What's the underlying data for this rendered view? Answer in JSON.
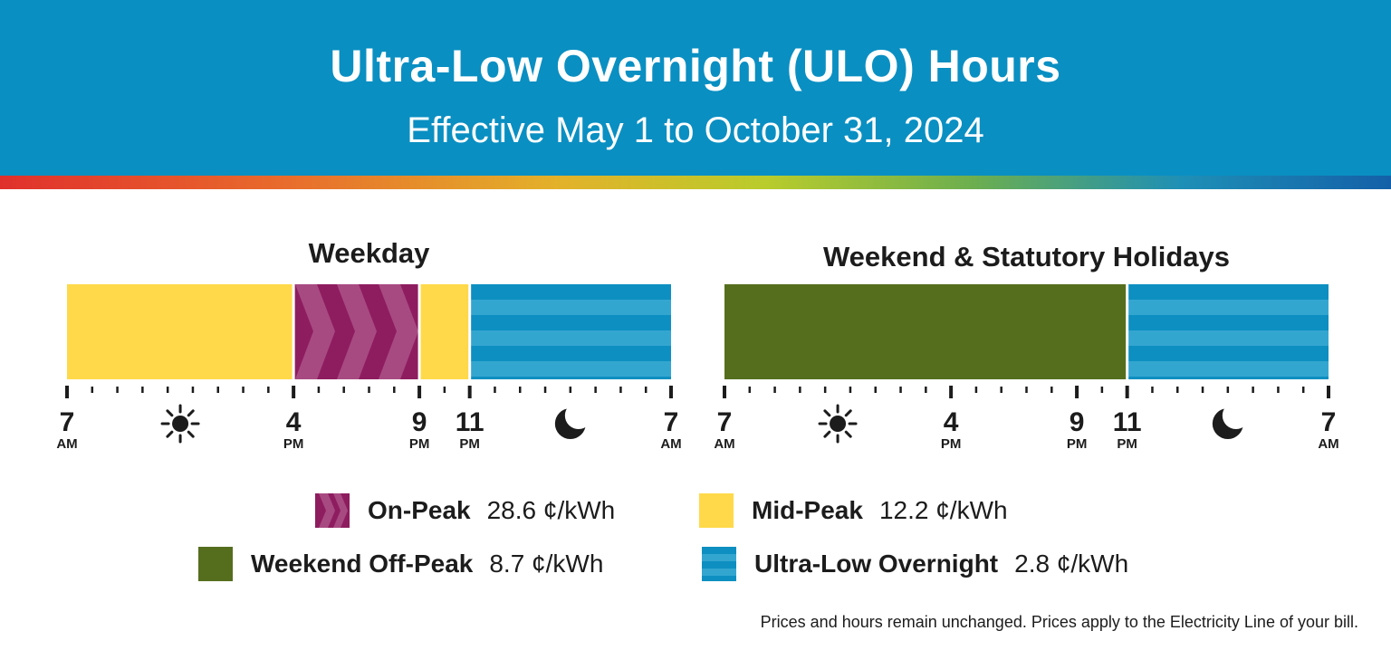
{
  "header": {
    "title": "Ultra-Low Overnight (ULO) Hours",
    "subtitle": "Effective May 1 to October 31, 2024"
  },
  "colors": {
    "header_bg": "#0a8fc2",
    "mid_peak": "#ffd94a",
    "on_peak": "#8e1d5f",
    "weekend_off_peak": "#556e1e",
    "ultra_low_overnight": "#0d8fc1",
    "ultra_low_overnight_stripe": "#33a6d0"
  },
  "legend": [
    {
      "key": "on_peak",
      "name": "On-Peak",
      "price": "28.6 ¢/kWh"
    },
    {
      "key": "mid_peak",
      "name": "Mid-Peak",
      "price": "12.2 ¢/kWh"
    },
    {
      "key": "weekend_off_peak",
      "name": "Weekend Off-Peak",
      "price": "8.7 ¢/kWh"
    },
    {
      "key": "ultra_low_overnight",
      "name": "Ultra-Low Overnight",
      "price": "2.8 ¢/kWh"
    }
  ],
  "footnote": "Prices and hours remain unchanged. Prices apply to the Electricity Line of your bill.",
  "chart_data": [
    {
      "type": "timeline",
      "title": "Weekday",
      "x_range_hours": [
        7,
        31
      ],
      "segments": [
        {
          "period": "mid_peak",
          "start": 7,
          "end": 16
        },
        {
          "period": "on_peak",
          "start": 16,
          "end": 21
        },
        {
          "period": "mid_peak",
          "start": 21,
          "end": 23
        },
        {
          "period": "ultra_low_overnight",
          "start": 23,
          "end": 31
        }
      ],
      "tick_labels": [
        {
          "hour": 7,
          "num": "7",
          "ampm": "AM"
        },
        {
          "hour": 16,
          "num": "4",
          "ampm": "PM"
        },
        {
          "hour": 21,
          "num": "9",
          "ampm": "PM"
        },
        {
          "hour": 23,
          "num": "11",
          "ampm": "PM"
        },
        {
          "hour": 31,
          "num": "7",
          "ampm": "AM"
        }
      ],
      "icons": [
        {
          "name": "sun-icon",
          "hour": 11.5
        },
        {
          "name": "moon-icon",
          "hour": 27
        }
      ]
    },
    {
      "type": "timeline",
      "title": "Weekend & Statutory Holidays",
      "x_range_hours": [
        7,
        31
      ],
      "segments": [
        {
          "period": "weekend_off_peak",
          "start": 7,
          "end": 23
        },
        {
          "period": "ultra_low_overnight",
          "start": 23,
          "end": 31
        }
      ],
      "tick_labels": [
        {
          "hour": 7,
          "num": "7",
          "ampm": "AM"
        },
        {
          "hour": 16,
          "num": "4",
          "ampm": "PM"
        },
        {
          "hour": 21,
          "num": "9",
          "ampm": "PM"
        },
        {
          "hour": 23,
          "num": "11",
          "ampm": "PM"
        },
        {
          "hour": 31,
          "num": "7",
          "ampm": "AM"
        }
      ],
      "icons": [
        {
          "name": "sun-icon",
          "hour": 11.5
        },
        {
          "name": "moon-icon",
          "hour": 27
        }
      ]
    }
  ]
}
